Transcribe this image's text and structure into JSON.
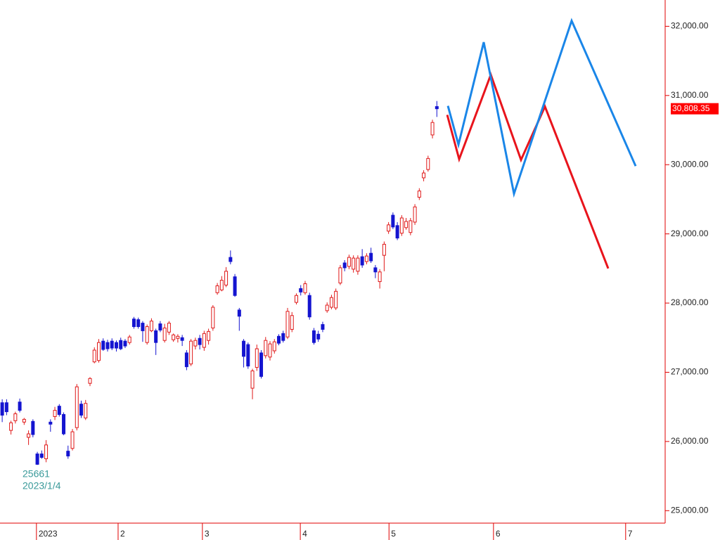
{
  "chart_data": {
    "type": "candlestick",
    "up_color": "#e01818",
    "down_color": "#1414d0",
    "xlim": [
      -0.5,
      151
    ],
    "ylim": [
      24820,
      32380
    ],
    "yticks": [
      {
        "value": 25000,
        "label": "25,000.00"
      },
      {
        "value": 26000,
        "label": "26,000.00"
      },
      {
        "value": 27000,
        "label": "27,000.00"
      },
      {
        "value": 28000,
        "label": "28,000.00"
      },
      {
        "value": 29000,
        "label": "29,000.00"
      },
      {
        "value": 30000,
        "label": "30,000.00"
      },
      {
        "value": 31000,
        "label": "31,000.00"
      },
      {
        "value": 32000,
        "label": "32,000.00"
      }
    ],
    "xticks": [
      {
        "value": 7.8,
        "label": "2023"
      },
      {
        "value": 26.4,
        "label": "2"
      },
      {
        "value": 45.6,
        "label": "3"
      },
      {
        "value": 67.9,
        "label": "4"
      },
      {
        "value": 88.1,
        "label": "5"
      },
      {
        "value": 111.9,
        "label": "6"
      },
      {
        "value": 142,
        "label": "7"
      }
    ],
    "ohlc": [
      [
        26560,
        26610,
        26280,
        26380
      ],
      [
        26560,
        26610,
        26380,
        26430
      ],
      [
        26160,
        26300,
        26100,
        26270
      ],
      [
        26300,
        26430,
        26260,
        26400
      ],
      [
        26570,
        26620,
        26420,
        26450
      ],
      [
        26280,
        26340,
        26240,
        26320
      ],
      [
        26060,
        26160,
        25950,
        26110
      ],
      [
        26290,
        26320,
        26060,
        26100
      ],
      [
        25820,
        25850,
        25661,
        25670
      ],
      [
        25820,
        25870,
        25750,
        25770
      ],
      [
        25750,
        26020,
        25700,
        25950
      ],
      [
        26280,
        26320,
        26140,
        26250
      ],
      [
        26360,
        26500,
        26310,
        26450
      ],
      [
        26510,
        26540,
        26360,
        26390
      ],
      [
        26390,
        26420,
        26090,
        26110
      ],
      [
        25860,
        25940,
        25750,
        25790
      ],
      [
        25900,
        26180,
        25870,
        26140
      ],
      [
        26200,
        26830,
        26160,
        26790
      ],
      [
        26540,
        26590,
        26340,
        26380
      ],
      [
        26340,
        26600,
        26310,
        26550
      ],
      [
        26840,
        26930,
        26800,
        26910
      ],
      [
        27150,
        27360,
        27130,
        27320
      ],
      [
        27170,
        27480,
        27140,
        27430
      ],
      [
        27450,
        27490,
        27310,
        27330
      ],
      [
        27430,
        27470,
        27300,
        27340
      ],
      [
        27450,
        27490,
        27320,
        27350
      ],
      [
        27430,
        27460,
        27300,
        27350
      ],
      [
        27460,
        27500,
        27320,
        27340
      ],
      [
        27450,
        27480,
        27350,
        27380
      ],
      [
        27430,
        27540,
        27400,
        27510
      ],
      [
        27770,
        27800,
        27630,
        27660
      ],
      [
        27760,
        27790,
        27630,
        27660
      ],
      [
        27710,
        27740,
        27440,
        27600
      ],
      [
        27430,
        27690,
        27400,
        27660
      ],
      [
        27600,
        27780,
        27580,
        27740
      ],
      [
        27600,
        27630,
        27250,
        27430
      ],
      [
        27700,
        27740,
        27580,
        27610
      ],
      [
        27460,
        27700,
        27430,
        27640
      ],
      [
        27580,
        27740,
        27540,
        27710
      ],
      [
        27470,
        27560,
        27440,
        27540
      ],
      [
        27490,
        27550,
        27430,
        27520
      ],
      [
        27500,
        27540,
        27380,
        27460
      ],
      [
        27280,
        27320,
        27030,
        27080
      ],
      [
        27120,
        27480,
        27090,
        27450
      ],
      [
        27380,
        27500,
        27330,
        27460
      ],
      [
        27490,
        27540,
        27330,
        27400
      ],
      [
        27360,
        27600,
        27310,
        27560
      ],
      [
        27460,
        27630,
        27400,
        27590
      ],
      [
        27640,
        27970,
        27600,
        27940
      ],
      [
        28150,
        28290,
        28120,
        28250
      ],
      [
        28190,
        28390,
        28170,
        28330
      ],
      [
        28260,
        28520,
        28230,
        28460
      ],
      [
        28660,
        28760,
        28560,
        28600
      ],
      [
        28380,
        28420,
        28090,
        28110
      ],
      [
        27900,
        27930,
        27600,
        27810
      ],
      [
        27450,
        27480,
        27070,
        27230
      ],
      [
        27400,
        27430,
        27050,
        27090
      ],
      [
        26770,
        27050,
        26610,
        27020
      ],
      [
        27070,
        27400,
        27020,
        27340
      ],
      [
        27280,
        27320,
        26910,
        26940
      ],
      [
        27240,
        27510,
        27200,
        27460
      ],
      [
        27220,
        27450,
        27170,
        27410
      ],
      [
        27310,
        27480,
        27270,
        27440
      ],
      [
        27520,
        27550,
        27390,
        27420
      ],
      [
        27560,
        27600,
        27430,
        27460
      ],
      [
        27510,
        27930,
        27480,
        27880
      ],
      [
        27620,
        27870,
        27580,
        27820
      ],
      [
        28010,
        28140,
        27980,
        28110
      ],
      [
        28210,
        28260,
        28110,
        28160
      ],
      [
        28150,
        28320,
        28120,
        28280
      ],
      [
        28110,
        28150,
        27760,
        27800
      ],
      [
        27600,
        27640,
        27400,
        27430
      ],
      [
        27550,
        27600,
        27440,
        27480
      ],
      [
        27690,
        27730,
        27580,
        27620
      ],
      [
        27890,
        28010,
        27860,
        27970
      ],
      [
        27940,
        28120,
        27910,
        28080
      ],
      [
        27930,
        28210,
        27900,
        28170
      ],
      [
        28290,
        28550,
        28260,
        28510
      ],
      [
        28580,
        28620,
        28460,
        28510
      ],
      [
        28530,
        28700,
        28490,
        28660
      ],
      [
        28490,
        28690,
        28440,
        28650
      ],
      [
        28460,
        28690,
        28410,
        28650
      ],
      [
        28670,
        28780,
        28510,
        28550
      ],
      [
        28600,
        28720,
        28560,
        28680
      ],
      [
        28720,
        28800,
        28580,
        28610
      ],
      [
        28510,
        28550,
        28360,
        28450
      ],
      [
        28310,
        28490,
        28210,
        28450
      ],
      [
        28690,
        28890,
        28460,
        28850
      ],
      [
        29040,
        29170,
        29000,
        29130
      ],
      [
        29270,
        29310,
        29070,
        29100
      ],
      [
        29120,
        29170,
        28910,
        28940
      ],
      [
        29010,
        29270,
        28970,
        29230
      ],
      [
        29090,
        29230,
        29060,
        29180
      ],
      [
        29020,
        29230,
        28980,
        29190
      ],
      [
        29170,
        29430,
        29130,
        29390
      ],
      [
        29530,
        29660,
        29490,
        29620
      ],
      [
        29810,
        29920,
        29760,
        29880
      ],
      [
        29930,
        30130,
        29900,
        30090
      ],
      [
        30430,
        30650,
        30380,
        30610
      ],
      [
        30840,
        30920,
        30690,
        30808.35
      ]
    ],
    "current_price": {
      "value": 30808.35,
      "label": "30,808.35"
    },
    "annotations": [
      "25661",
      "2023/1/4"
    ],
    "lines": [
      {
        "color": "#e8141c",
        "x": [
          101.36,
          104.08,
          111.29,
          118.17,
          123.62,
          138.03
        ],
        "values": [
          30720,
          30080,
          31300,
          30070,
          30840,
          28500
        ]
      },
      {
        "color": "#1a86e8",
        "x": [
          101.52,
          103.92,
          109.68,
          116.57,
          129.7,
          144.28
        ],
        "values": [
          30850,
          30290,
          31770,
          29580,
          32080,
          29980
        ]
      }
    ]
  }
}
